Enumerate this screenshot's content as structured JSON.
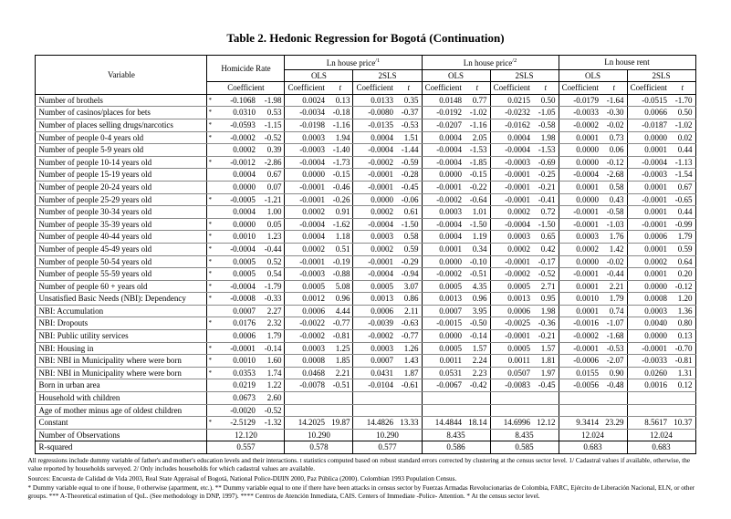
{
  "title": "Table 2. Hedonic Regression for Bogotá (Continuation)",
  "table": {
    "header": {
      "variable": "Variable",
      "homicide_label": "Homicide Rate",
      "groups": [
        {
          "label": "Homicide Rate",
          "sup": ""
        },
        {
          "label": "Ln house price",
          "sup": "/1"
        },
        {
          "label": "Ln house price",
          "sup": "/2"
        },
        {
          "label": "Ln house rent",
          "sup": ""
        }
      ],
      "model_labels": [
        "OLS",
        "2SLS"
      ],
      "coef_label": "Coefficient",
      "t_label": "t"
    },
    "rows": [
      {
        "label": "Number of brothels",
        "star": "*",
        "cells": [
          "-0.1068",
          "-1.98",
          "0.0024",
          "0.13",
          "0.0133",
          "0.35",
          "0.0148",
          "0.77",
          "0.0215",
          "0.50",
          "-0.0179",
          "-1.64",
          "-0.0515",
          "-1.70"
        ]
      },
      {
        "label": "Number of casinos/places for bets",
        "star": "*",
        "cells": [
          "0.0310",
          "0.53",
          "-0.0034",
          "-0.18",
          "-0.0080",
          "-0.37",
          "-0.0192",
          "-1.02",
          "-0.0232",
          "-1.05",
          "-0.0033",
          "-0.30",
          "0.0066",
          "0.50"
        ]
      },
      {
        "label": "Number of places selling drugs/narcotics",
        "star": "*",
        "cells": [
          "-0.0593",
          "-1.15",
          "-0.0198",
          "-1.16",
          "-0.0135",
          "-0.53",
          "-0.0207",
          "-1.16",
          "-0.0162",
          "-0.58",
          "-0.0002",
          "-0.02",
          "-0.0187",
          "-1.02"
        ]
      },
      {
        "label": "Number of people 0-4 years old",
        "star": "*",
        "cells": [
          "-0.0002",
          "-0.52",
          "0.0003",
          "1.94",
          "0.0004",
          "1.51",
          "0.0004",
          "2.05",
          "0.0004",
          "1.98",
          "0.0001",
          "0.73",
          "0.0000",
          "0.02"
        ]
      },
      {
        "label": "Number of people 5-9 years old",
        "star": "",
        "cells": [
          "0.0002",
          "0.39",
          "-0.0003",
          "-1.40",
          "-0.0004",
          "-1.44",
          "-0.0004",
          "-1.53",
          "-0.0004",
          "-1.53",
          "0.0000",
          "0.06",
          "0.0001",
          "0.44"
        ]
      },
      {
        "label": "Number of people 10-14 years old",
        "star": "*",
        "cells": [
          "-0.0012",
          "-2.86",
          "-0.0004",
          "-1.73",
          "-0.0002",
          "-0.59",
          "-0.0004",
          "-1.85",
          "-0.0003",
          "-0.69",
          "0.0000",
          "-0.12",
          "-0.0004",
          "-1.13"
        ]
      },
      {
        "label": "Number of people 15-19 years old",
        "star": "",
        "cells": [
          "0.0004",
          "0.67",
          "0.0000",
          "-0.15",
          "-0.0001",
          "-0.28",
          "0.0000",
          "-0.15",
          "-0.0001",
          "-0.25",
          "-0.0004",
          "-2.68",
          "-0.0003",
          "-1.54"
        ]
      },
      {
        "label": "Number of people 20-24 years old",
        "star": "",
        "cells": [
          "0.0000",
          "0.07",
          "-0.0001",
          "-0.46",
          "-0.0001",
          "-0.45",
          "-0.0001",
          "-0.22",
          "-0.0001",
          "-0.21",
          "0.0001",
          "0.58",
          "0.0001",
          "0.67"
        ]
      },
      {
        "label": "Number of people 25-29 years old",
        "star": "*",
        "cells": [
          "-0.0005",
          "-1.21",
          "-0.0001",
          "-0.26",
          "0.0000",
          "-0.06",
          "-0.0002",
          "-0.64",
          "-0.0001",
          "-0.41",
          "0.0000",
          "0.43",
          "-0.0001",
          "-0.65"
        ]
      },
      {
        "label": "Number of people 30-34 years old",
        "star": "",
        "cells": [
          "0.0004",
          "1.00",
          "0.0002",
          "0.91",
          "0.0002",
          "0.61",
          "0.0003",
          "1.01",
          "0.0002",
          "0.72",
          "-0.0001",
          "-0.58",
          "0.0001",
          "0.44"
        ]
      },
      {
        "label": "Number of people 35-39 years old",
        "star": "*",
        "cells": [
          "0.0000",
          "0.05",
          "-0.0004",
          "-1.62",
          "-0.0004",
          "-1.50",
          "-0.0004",
          "-1.50",
          "-0.0004",
          "-1.50",
          "-0.0001",
          "-1.03",
          "-0.0001",
          "-0.99"
        ]
      },
      {
        "label": "Number of people 40-44 years old",
        "star": "*",
        "cells": [
          "0.0010",
          "1.23",
          "0.0004",
          "1.18",
          "0.0003",
          "0.58",
          "0.0004",
          "1.19",
          "0.0003",
          "0.65",
          "0.0003",
          "1.76",
          "0.0006",
          "1.79"
        ]
      },
      {
        "label": "Number of people 45-49 years old",
        "star": "*",
        "cells": [
          "-0.0004",
          "-0.44",
          "0.0002",
          "0.51",
          "0.0002",
          "0.59",
          "0.0001",
          "0.34",
          "0.0002",
          "0.42",
          "0.0002",
          "1.42",
          "0.0001",
          "0.59"
        ]
      },
      {
        "label": "Number of people 50-54 years old",
        "star": "*",
        "cells": [
          "0.0005",
          "0.52",
          "-0.0001",
          "-0.19",
          "-0.0001",
          "-0.29",
          "0.0000",
          "-0.10",
          "-0.0001",
          "-0.17",
          "0.0000",
          "-0.02",
          "0.0002",
          "0.64"
        ]
      },
      {
        "label": "Number of people 55-59 years old",
        "star": "*",
        "cells": [
          "0.0005",
          "0.54",
          "-0.0003",
          "-0.88",
          "-0.0004",
          "-0.94",
          "-0.0002",
          "-0.51",
          "-0.0002",
          "-0.52",
          "-0.0001",
          "-0.44",
          "0.0001",
          "0.20"
        ]
      },
      {
        "label": "Number of people 60 +  years old",
        "star": "*",
        "cells": [
          "-0.0004",
          "-1.79",
          "0.0005",
          "5.08",
          "0.0005",
          "3.07",
          "0.0005",
          "4.35",
          "0.0005",
          "2.71",
          "0.0001",
          "2.21",
          "0.0000",
          "-0.12"
        ]
      },
      {
        "label": "Unsatisfied Basic Needs (NBI): Dependency",
        "star": "*",
        "cells": [
          "-0.0008",
          "-0.33",
          "0.0012",
          "0.96",
          "0.0013",
          "0.86",
          "0.0013",
          "0.96",
          "0.0013",
          "0.95",
          "0.0010",
          "1.79",
          "0.0008",
          "1.20"
        ]
      },
      {
        "label": "NBI: Accumulation",
        "star": "",
        "cells": [
          "0.0007",
          "2.27",
          "0.0006",
          "4.44",
          "0.0006",
          "2.11",
          "0.0007",
          "3.95",
          "0.0006",
          "1.98",
          "0.0001",
          "0.74",
          "0.0003",
          "1.36"
        ]
      },
      {
        "label": "NBI: Dropouts",
        "star": "*",
        "cells": [
          "0.0176",
          "2.32",
          "-0.0022",
          "-0.77",
          "-0.0039",
          "-0.63",
          "-0.0015",
          "-0.50",
          "-0.0025",
          "-0.36",
          "-0.0016",
          "-1.07",
          "0.0040",
          "0.80"
        ]
      },
      {
        "label": "NBI: Public utility services",
        "star": "",
        "cells": [
          "0.0006",
          "1.79",
          "-0.0002",
          "-0.81",
          "-0.0002",
          "-0.77",
          "0.0000",
          "-0.14",
          "-0.0001",
          "-0.21",
          "-0.0002",
          "-1.68",
          "0.0000",
          "0.13"
        ]
      },
      {
        "label": "NBI: Housing in",
        "star": "*",
        "cells": [
          "-0.0001",
          "-0.14",
          "0.0003",
          "1.25",
          "0.0003",
          "1.26",
          "0.0005",
          "1.57",
          "0.0005",
          "1.57",
          "-0.0001",
          "-0.53",
          "-0.0001",
          "-0.70"
        ]
      },
      {
        "label": "NBI: NBI in Municipality where were born",
        "star": "*",
        "cells": [
          "0.0010",
          "1.60",
          "0.0008",
          "1.85",
          "0.0007",
          "1.43",
          "0.0011",
          "2.24",
          "0.0011",
          "1.81",
          "-0.0006",
          "-2.07",
          "-0.0033",
          "-0.81"
        ]
      },
      {
        "label": "NBI: NBI in Municipality where were born",
        "star": "*",
        "cells": [
          "0.0353",
          "1.74",
          "0.0468",
          "2.21",
          "0.0431",
          "1.87",
          "0.0531",
          "2.23",
          "0.0507",
          "1.97",
          "0.0155",
          "0.90",
          "0.0260",
          "1.31"
        ]
      },
      {
        "label": "Born in urban area",
        "star": "",
        "cells": [
          "0.0219",
          "1.22",
          "-0.0078",
          "-0.51",
          "-0.0104",
          "-0.61",
          "-0.0067",
          "-0.42",
          "-0.0083",
          "-0.45",
          "-0.0056",
          "-0.48",
          "0.0016",
          "0.12"
        ]
      },
      {
        "label": "Household with children",
        "star": "",
        "cells": [
          "0.0673",
          "2.60",
          "",
          "",
          "",
          "",
          "",
          "",
          "",
          "",
          "",
          "",
          "",
          ""
        ]
      },
      {
        "label": "Age of mother minus age of oldest children",
        "star": "",
        "cells": [
          "-0.0020",
          "-0.52",
          "",
          "",
          "",
          "",
          "",
          "",
          "",
          "",
          "",
          "",
          "",
          ""
        ]
      },
      {
        "label": "Constant",
        "star": "*",
        "cells": [
          "-2.5129",
          "-1.32",
          "14.2025",
          "19.87",
          "14.4826",
          "13.33",
          "14.4844",
          "18.14",
          "14.6996",
          "12.12",
          "9.3414",
          "23.29",
          "8.5617",
          "10.37"
        ]
      }
    ],
    "summary_rows": [
      {
        "label": "Number of Observations",
        "values": [
          "12.120",
          "10.290",
          "10.290",
          "8.435",
          "8.435",
          "12.024",
          "12.024"
        ]
      },
      {
        "label": "R-squared",
        "values": [
          "0.557",
          "0.578",
          "0.577",
          "0.586",
          "0.585",
          "0.683",
          "0.683"
        ]
      }
    ]
  },
  "footnotes": [
    "All regressions include dummy variable of father's and mother's education levels and their interactions. t statistics computed based on robust standard errors corrected by clustering at the census sector level. 1/ Cadastral values if available, otherwise, the value reported by households surveyed. 2/ Only includes households for which cadastral values are available.",
    "Sources: Encuesta de Calidad de Vida 2003, Real State Appraisal of Bogotá, National Police-DIJIN 2000, Paz Pública (2000). Colombian 1993 Population Census.",
    "* Dummy variable equal to one if house, 0 otherwise (apartment, etc.). ** Dummy variable equal to one if there have been attacks in census sector by Fuerzas Armadas Revolucionarias de Colombia, FARC, Ejército de Liberación Nacional, ELN, or other groups. *** A-Theoretical estimation of QoL. (See methodology in DNP, 1997). **** Centros de Atención Inmediata, CAIS. Centers of Immediate -Police- Attention. * At the census sector level."
  ]
}
